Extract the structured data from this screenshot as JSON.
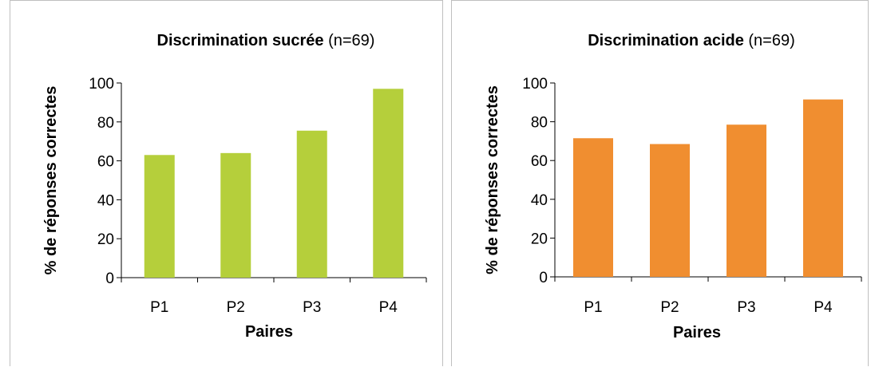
{
  "chart_data": [
    {
      "type": "bar",
      "title_bold": "Discrimination sucrée",
      "title_suffix": " (n=69)",
      "categories": [
        "P1",
        "P2",
        "P3",
        "P4"
      ],
      "values": [
        63,
        64,
        75.5,
        97
      ],
      "xlabel": "Paires",
      "ylabel": "% de réponses correctes",
      "ylim": [
        0,
        100
      ],
      "yticks": [
        0,
        20,
        40,
        60,
        80,
        100
      ],
      "grid": false,
      "legend": "none",
      "color": "#b5cf3b"
    },
    {
      "type": "bar",
      "title_bold": "Discrimination acide",
      "title_suffix": " (n=69)",
      "categories": [
        "P1",
        "P2",
        "P3",
        "P4"
      ],
      "values": [
        71.5,
        68.5,
        78.5,
        91.5
      ],
      "xlabel": "Paires",
      "ylabel": "% de réponses correctes",
      "ylim": [
        0,
        100
      ],
      "yticks": [
        0,
        20,
        40,
        60,
        80,
        100
      ],
      "grid": false,
      "legend": "none",
      "color": "#f08e30"
    }
  ]
}
